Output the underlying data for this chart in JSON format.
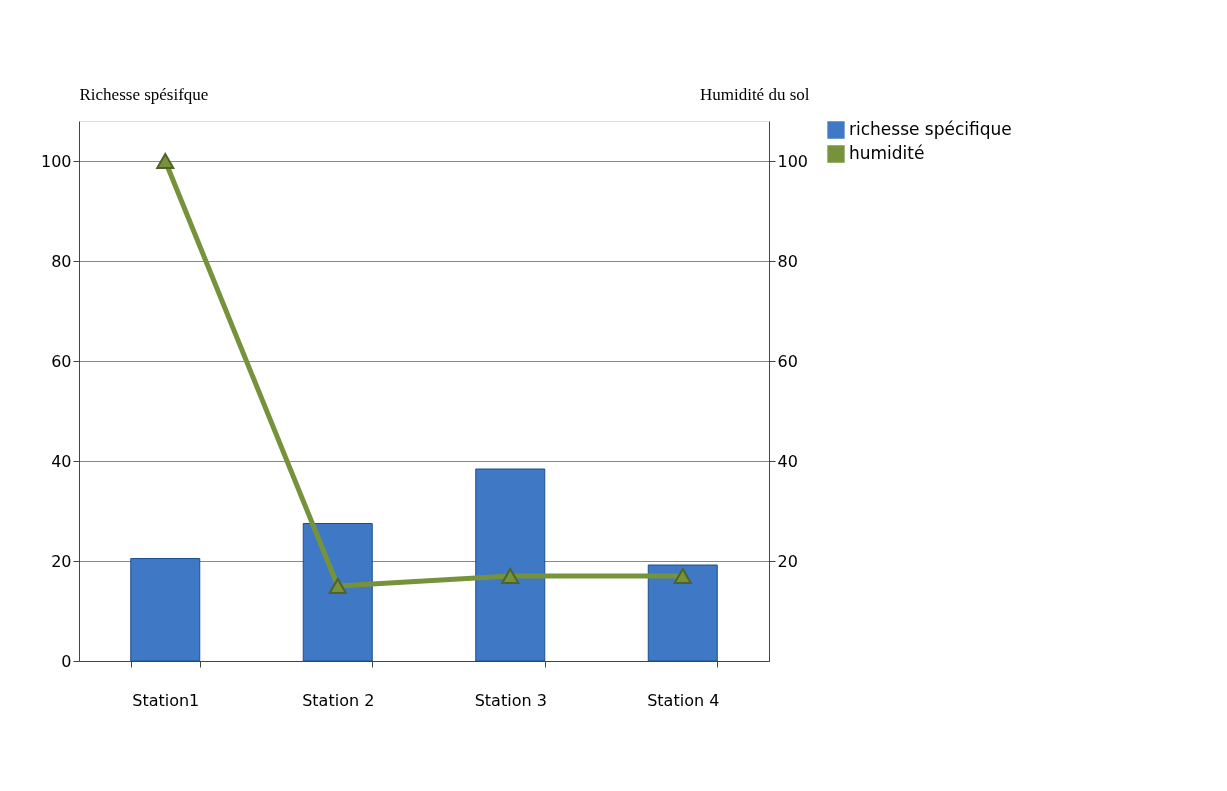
{
  "chart_data": {
    "type": "bar",
    "categories": [
      "Station1",
      "Station 2",
      "Station 3",
      "Station 4"
    ],
    "ylabel": "Richesse spésifque",
    "y2label": "Humidité du sol",
    "series": [
      {
        "name": "richesse spécifique",
        "color": "#3f78c4",
        "values": [
          20.5,
          27.5,
          38.4,
          19.2
        ]
      },
      {
        "name": "humidité",
        "color": "#76933c",
        "values": [
          100,
          15,
          17,
          17
        ],
        "type": "line",
        "axis": "y2",
        "marker": "triangle",
        "line_style": "solid"
      }
    ],
    "ylim": [
      0,
      108
    ],
    "yticks": [
      0,
      20,
      40,
      60,
      80,
      100
    ],
    "y2lim": [
      0,
      108
    ],
    "y2ticks": [
      20,
      40,
      60,
      80,
      100
    ],
    "grid": "y",
    "legend": "right"
  }
}
